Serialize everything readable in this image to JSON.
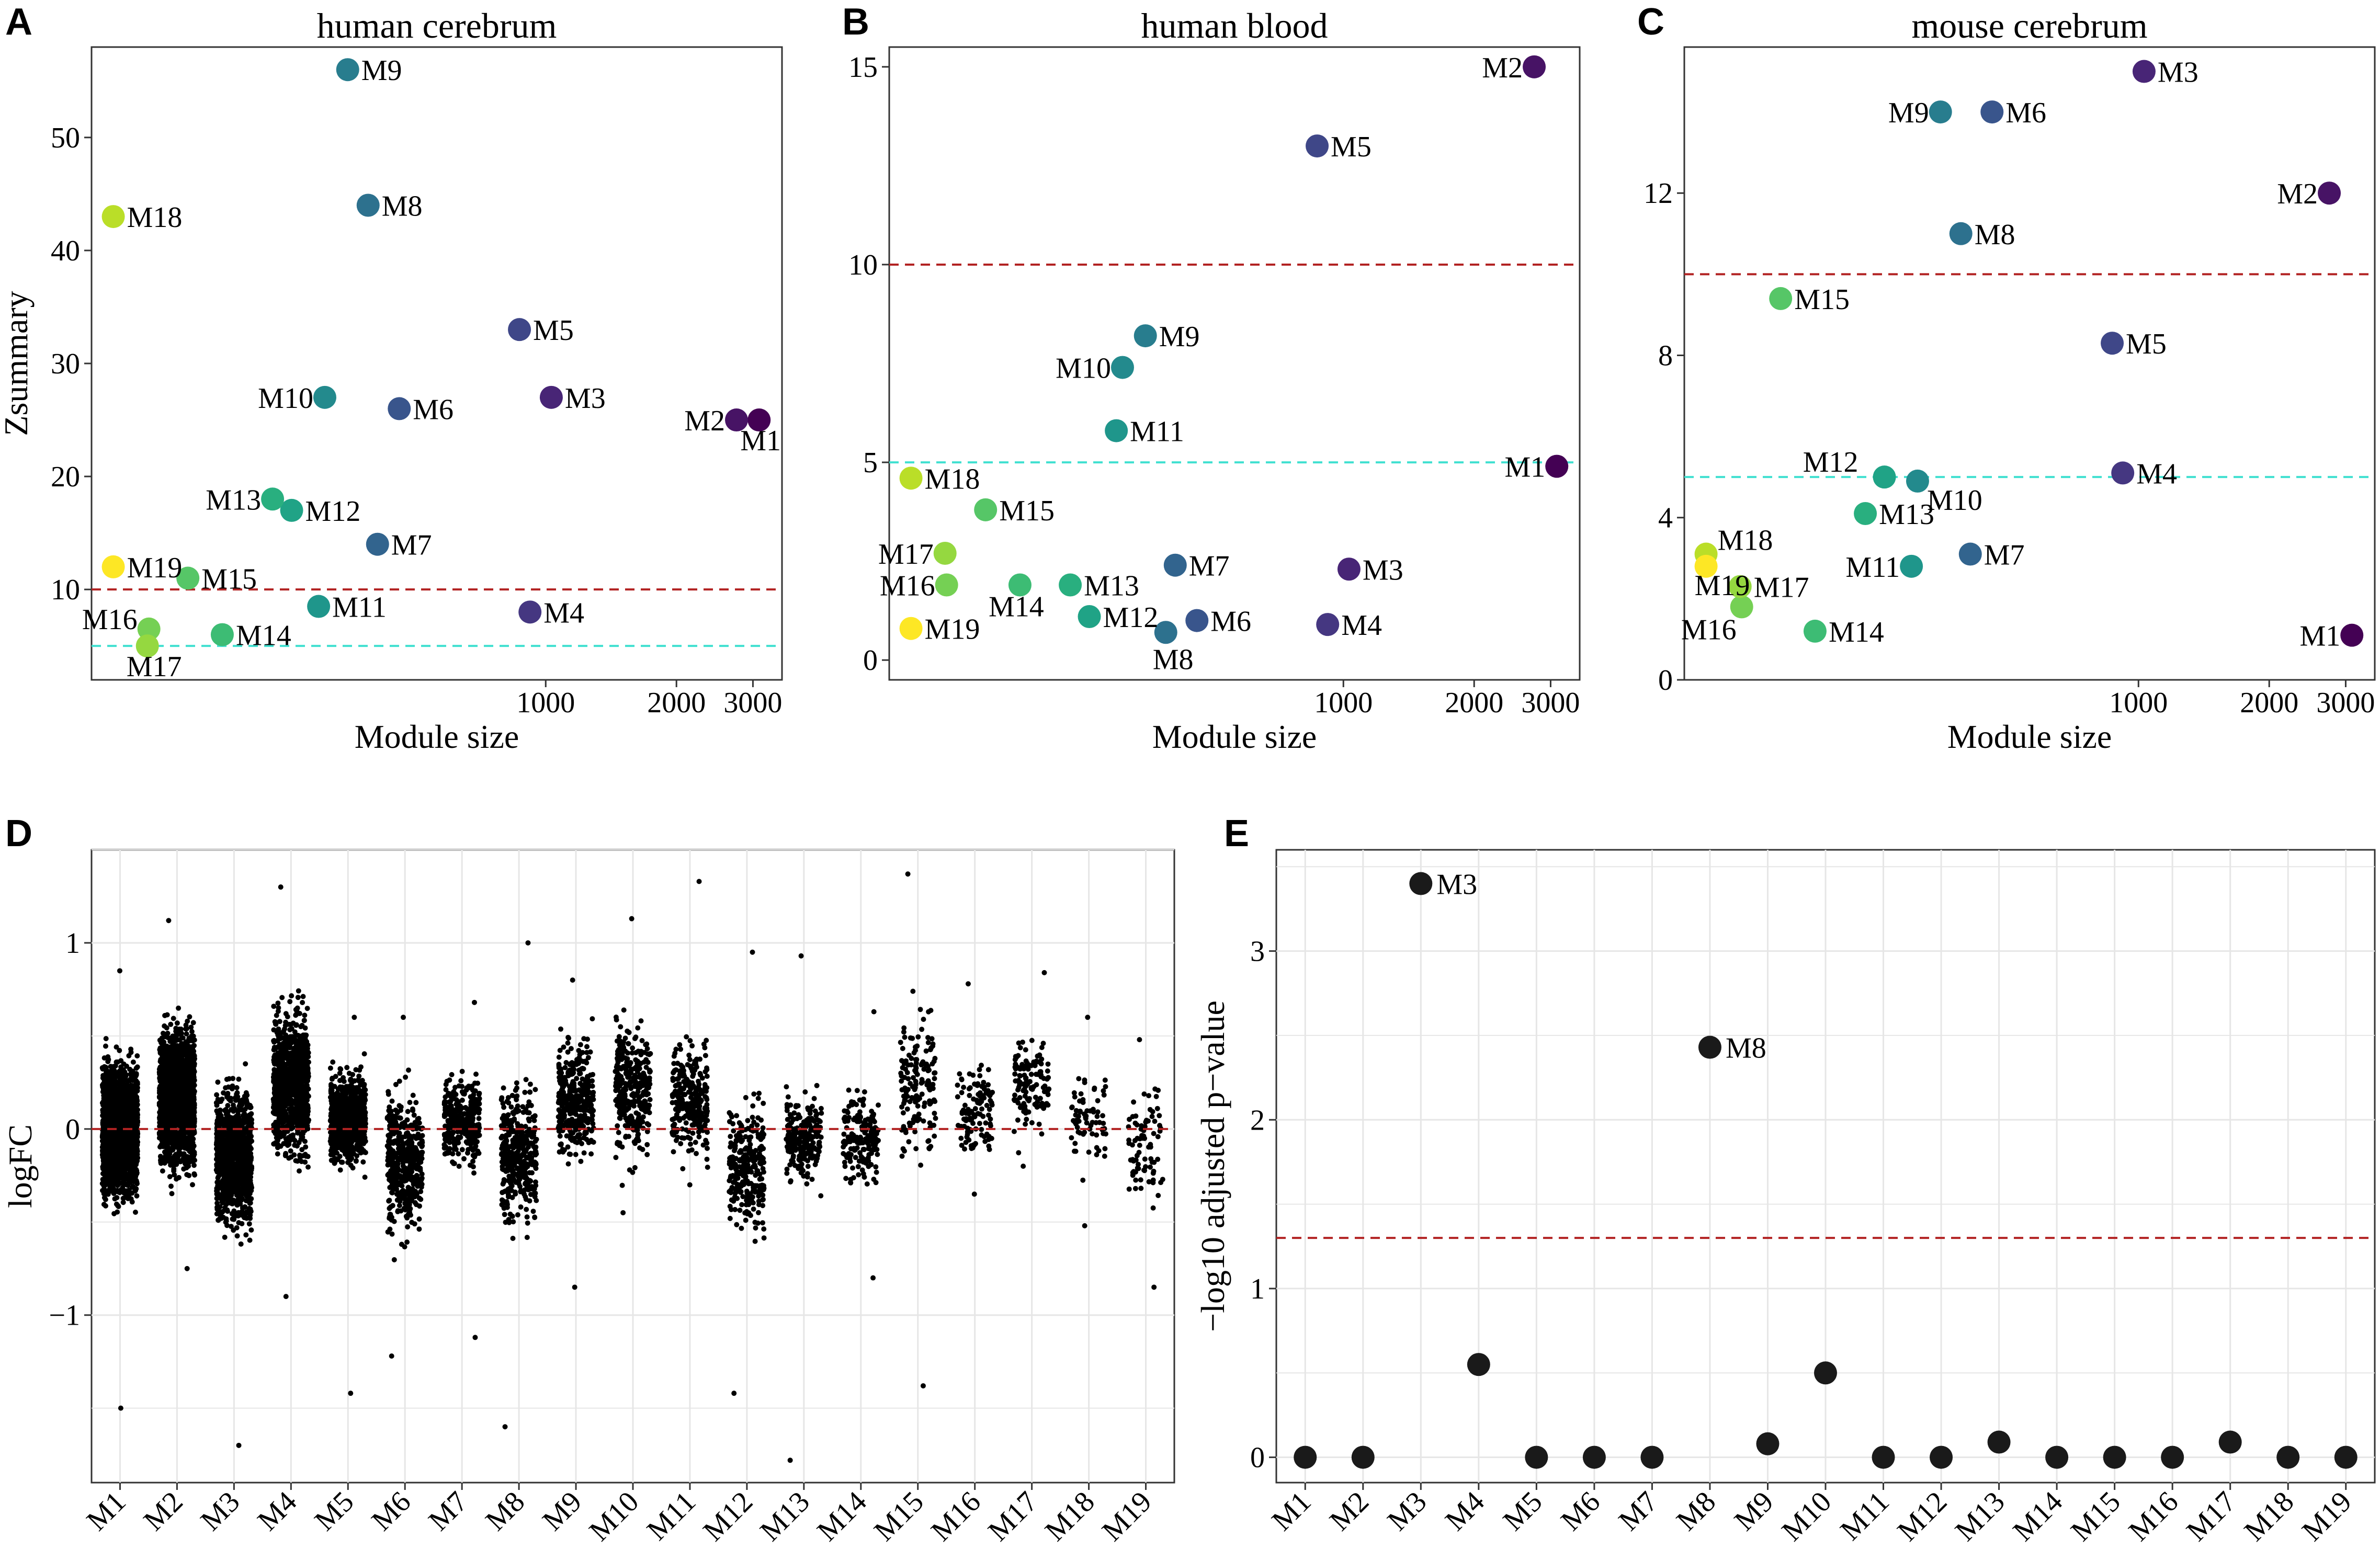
{
  "chart_data": [
    {
      "panel": "A",
      "type": "scatter",
      "title": "human cerebrum",
      "xlabel": "Module size",
      "ylabel": "Zsummary",
      "xscale": "log",
      "xlim": [
        90,
        3500
      ],
      "ylim": [
        2,
        58
      ],
      "xticks": [
        1000,
        2000,
        3000
      ],
      "yticks": [
        10,
        20,
        30,
        40,
        50
      ],
      "reference_lines": [
        {
          "y": 10,
          "color": "#b22222",
          "style": "dashed"
        },
        {
          "y": 5,
          "color": "#40e0d0",
          "style": "dashed"
        }
      ],
      "points": [
        {
          "label": "M1",
          "x": 3100,
          "y": 25,
          "color": "#440154"
        },
        {
          "label": "M2",
          "x": 2750,
          "y": 25,
          "color": "#471365"
        },
        {
          "label": "M3",
          "x": 1030,
          "y": 27,
          "color": "#482576"
        },
        {
          "label": "M4",
          "x": 920,
          "y": 8,
          "color": "#453781"
        },
        {
          "label": "M5",
          "x": 870,
          "y": 33,
          "color": "#3f4788"
        },
        {
          "label": "M6",
          "x": 460,
          "y": 26,
          "color": "#39558c"
        },
        {
          "label": "M7",
          "x": 410,
          "y": 14,
          "color": "#32648e"
        },
        {
          "label": "M8",
          "x": 390,
          "y": 44,
          "color": "#2d718e"
        },
        {
          "label": "M9",
          "x": 350,
          "y": 56,
          "color": "#287d8e"
        },
        {
          "label": "M10",
          "x": 310,
          "y": 27,
          "color": "#238a8d"
        },
        {
          "label": "M11",
          "x": 300,
          "y": 8.5,
          "color": "#1f968b"
        },
        {
          "label": "M12",
          "x": 260,
          "y": 17,
          "color": "#20a386"
        },
        {
          "label": "M13",
          "x": 235,
          "y": 18,
          "color": "#29af7f"
        },
        {
          "label": "M14",
          "x": 180,
          "y": 6,
          "color": "#3dbc74"
        },
        {
          "label": "M15",
          "x": 150,
          "y": 11,
          "color": "#56c667"
        },
        {
          "label": "M16",
          "x": 122,
          "y": 6.5,
          "color": "#75d054"
        },
        {
          "label": "M17",
          "x": 121,
          "y": 5,
          "color": "#95d840"
        },
        {
          "label": "M18",
          "x": 101,
          "y": 43,
          "color": "#bade28"
        },
        {
          "label": "M19",
          "x": 101,
          "y": 12,
          "color": "#fde725"
        }
      ]
    },
    {
      "panel": "B",
      "type": "scatter",
      "title": "human blood",
      "xlabel": "Module size",
      "ylabel": "",
      "xscale": "log",
      "xlim": [
        90,
        3500
      ],
      "ylim": [
        -0.5,
        15.5
      ],
      "xticks": [
        1000,
        2000,
        3000
      ],
      "yticks": [
        0,
        5,
        10,
        15
      ],
      "reference_lines": [
        {
          "y": 10,
          "color": "#b22222",
          "style": "dashed"
        },
        {
          "y": 5,
          "color": "#40e0d0",
          "style": "dashed"
        }
      ],
      "points": [
        {
          "label": "M1",
          "x": 3100,
          "y": 4.9,
          "color": "#440154"
        },
        {
          "label": "M2",
          "x": 2750,
          "y": 15,
          "color": "#471365"
        },
        {
          "label": "M3",
          "x": 1030,
          "y": 2.3,
          "color": "#482576"
        },
        {
          "label": "M4",
          "x": 920,
          "y": 0.9,
          "color": "#453781"
        },
        {
          "label": "M5",
          "x": 870,
          "y": 13,
          "color": "#3f4788"
        },
        {
          "label": "M6",
          "x": 460,
          "y": 1.0,
          "color": "#39558c"
        },
        {
          "label": "M7",
          "x": 410,
          "y": 2.4,
          "color": "#32648e"
        },
        {
          "label": "M8",
          "x": 390,
          "y": 0.7,
          "color": "#2d718e"
        },
        {
          "label": "M9",
          "x": 350,
          "y": 8.2,
          "color": "#287d8e"
        },
        {
          "label": "M10",
          "x": 310,
          "y": 7.4,
          "color": "#238a8d"
        },
        {
          "label": "M11",
          "x": 300,
          "y": 5.8,
          "color": "#1f968b"
        },
        {
          "label": "M12",
          "x": 260,
          "y": 1.1,
          "color": "#20a386"
        },
        {
          "label": "M13",
          "x": 235,
          "y": 1.9,
          "color": "#29af7f"
        },
        {
          "label": "M14",
          "x": 180,
          "y": 1.9,
          "color": "#3dbc74"
        },
        {
          "label": "M15",
          "x": 150,
          "y": 3.8,
          "color": "#56c667"
        },
        {
          "label": "M16",
          "x": 122,
          "y": 1.9,
          "color": "#75d054"
        },
        {
          "label": "M17",
          "x": 121,
          "y": 2.7,
          "color": "#95d840"
        },
        {
          "label": "M18",
          "x": 101,
          "y": 4.6,
          "color": "#bade28"
        },
        {
          "label": "M19",
          "x": 101,
          "y": 0.8,
          "color": "#fde725"
        }
      ]
    },
    {
      "panel": "C",
      "type": "scatter",
      "title": "mouse cerebrum",
      "xlabel": "Module size",
      "ylabel": "",
      "xscale": "log",
      "xlim": [
        90,
        3500
      ],
      "ylim": [
        0,
        15.6
      ],
      "xticks": [
        1000,
        2000,
        3000
      ],
      "yticks": [
        0,
        4,
        8,
        12
      ],
      "reference_lines": [
        {
          "y": 10,
          "color": "#b22222",
          "style": "dashed"
        },
        {
          "y": 5,
          "color": "#40e0d0",
          "style": "dashed"
        }
      ],
      "points": [
        {
          "label": "M1",
          "x": 3100,
          "y": 1.1,
          "color": "#440154"
        },
        {
          "label": "M2",
          "x": 2750,
          "y": 12,
          "color": "#471365"
        },
        {
          "label": "M3",
          "x": 1030,
          "y": 15,
          "color": "#482576"
        },
        {
          "label": "M4",
          "x": 920,
          "y": 5.1,
          "color": "#453781"
        },
        {
          "label": "M5",
          "x": 870,
          "y": 8.3,
          "color": "#3f4788"
        },
        {
          "label": "M6",
          "x": 460,
          "y": 14,
          "color": "#39558c"
        },
        {
          "label": "M7",
          "x": 410,
          "y": 3.1,
          "color": "#32648e"
        },
        {
          "label": "M8",
          "x": 390,
          "y": 11,
          "color": "#2d718e"
        },
        {
          "label": "M9",
          "x": 350,
          "y": 14,
          "color": "#287d8e"
        },
        {
          "label": "M10",
          "x": 310,
          "y": 4.9,
          "color": "#238a8d"
        },
        {
          "label": "M11",
          "x": 300,
          "y": 2.8,
          "color": "#1f968b"
        },
        {
          "label": "M12",
          "x": 260,
          "y": 5.0,
          "color": "#20a386"
        },
        {
          "label": "M13",
          "x": 235,
          "y": 4.1,
          "color": "#29af7f"
        },
        {
          "label": "M14",
          "x": 180,
          "y": 1.2,
          "color": "#3dbc74"
        },
        {
          "label": "M15",
          "x": 150,
          "y": 9.4,
          "color": "#56c667"
        },
        {
          "label": "M16",
          "x": 122,
          "y": 1.8,
          "color": "#75d054"
        },
        {
          "label": "M17",
          "x": 121,
          "y": 2.3,
          "color": "#95d840"
        },
        {
          "label": "M18",
          "x": 101,
          "y": 3.1,
          "color": "#bade28"
        },
        {
          "label": "M19",
          "x": 101,
          "y": 2.8,
          "color": "#fde725"
        }
      ]
    },
    {
      "panel": "D",
      "type": "scatter",
      "subtype": "jitter-strip",
      "title": "",
      "xlabel": "",
      "ylabel": "logFC",
      "ylim": [
        -1.9,
        1.5
      ],
      "yticks": [
        -1,
        0,
        1
      ],
      "reference_lines": [
        {
          "y": 0,
          "color": "#b22222",
          "style": "dashed"
        }
      ],
      "categories": [
        "M1",
        "M2",
        "M3",
        "M4",
        "M5",
        "M6",
        "M7",
        "M8",
        "M9",
        "M10",
        "M11",
        "M12",
        "M13",
        "M14",
        "M15",
        "M16",
        "M17",
        "M18",
        "M19"
      ],
      "groups": [
        {
          "module": "M1",
          "n": 2200,
          "mean": 0.0,
          "sd": 0.28,
          "min": -1.5,
          "max": 0.85
        },
        {
          "module": "M2",
          "n": 1800,
          "mean": 0.18,
          "sd": 0.3,
          "min": -0.75,
          "max": 1.12
        },
        {
          "module": "M3",
          "n": 1100,
          "mean": -0.15,
          "sd": 0.3,
          "min": -1.7,
          "max": 0.35
        },
        {
          "module": "M4",
          "n": 900,
          "mean": 0.25,
          "sd": 0.33,
          "min": -0.9,
          "max": 1.3
        },
        {
          "module": "M5",
          "n": 700,
          "mean": 0.05,
          "sd": 0.2,
          "min": -1.42,
          "max": 0.6
        },
        {
          "module": "M6",
          "n": 450,
          "mean": -0.18,
          "sd": 0.3,
          "min": -1.22,
          "max": 0.6
        },
        {
          "module": "M7",
          "n": 300,
          "mean": 0.05,
          "sd": 0.2,
          "min": -1.12,
          "max": 0.68
        },
        {
          "module": "M8",
          "n": 380,
          "mean": -0.15,
          "sd": 0.3,
          "min": -1.6,
          "max": 1.0
        },
        {
          "module": "M9",
          "n": 350,
          "mean": 0.15,
          "sd": 0.25,
          "min": -0.85,
          "max": 0.8
        },
        {
          "module": "M10",
          "n": 320,
          "mean": 0.22,
          "sd": 0.3,
          "min": -0.45,
          "max": 1.13
        },
        {
          "module": "M11",
          "n": 280,
          "mean": 0.15,
          "sd": 0.25,
          "min": -0.3,
          "max": 1.33
        },
        {
          "module": "M12",
          "n": 260,
          "mean": -0.2,
          "sd": 0.28,
          "min": -1.42,
          "max": 0.95
        },
        {
          "module": "M13",
          "n": 220,
          "mean": -0.05,
          "sd": 0.2,
          "min": -1.78,
          "max": 0.93
        },
        {
          "module": "M14",
          "n": 180,
          "mean": -0.05,
          "sd": 0.2,
          "min": -0.8,
          "max": 0.63
        },
        {
          "module": "M15",
          "n": 150,
          "mean": 0.25,
          "sd": 0.35,
          "min": -1.38,
          "max": 1.37
        },
        {
          "module": "M16",
          "n": 110,
          "mean": 0.1,
          "sd": 0.2,
          "min": -0.35,
          "max": 0.78
        },
        {
          "module": "M17",
          "n": 120,
          "mean": 0.25,
          "sd": 0.22,
          "min": -0.2,
          "max": 0.84
        },
        {
          "module": "M18",
          "n": 70,
          "mean": 0.05,
          "sd": 0.2,
          "min": -0.52,
          "max": 0.6
        },
        {
          "module": "M19",
          "n": 80,
          "mean": -0.05,
          "sd": 0.25,
          "min": -0.85,
          "max": 0.48
        }
      ]
    },
    {
      "panel": "E",
      "type": "scatter",
      "title": "",
      "xlabel": "",
      "ylabel": "−log10 adjusted p−value",
      "ylim": [
        -0.15,
        3.6
      ],
      "yticks": [
        0,
        1,
        2,
        3
      ],
      "reference_lines": [
        {
          "y": 1.3,
          "color": "#b22222",
          "style": "dashed"
        }
      ],
      "categories": [
        "M1",
        "M2",
        "M3",
        "M4",
        "M5",
        "M6",
        "M7",
        "M8",
        "M9",
        "M10",
        "M11",
        "M12",
        "M13",
        "M14",
        "M15",
        "M16",
        "M17",
        "M18",
        "M19"
      ],
      "values": [
        0,
        0,
        3.4,
        0.55,
        0,
        0,
        0,
        2.43,
        0.08,
        0.5,
        0,
        0,
        0.09,
        0,
        0,
        0,
        0.09,
        0,
        0
      ],
      "point_labels": {
        "M3": "M3",
        "M8": "M8"
      },
      "point_color": "#1a1a1a"
    }
  ],
  "panels": {
    "A": {
      "letter": "A"
    },
    "B": {
      "letter": "B"
    },
    "C": {
      "letter": "C"
    },
    "D": {
      "letter": "D"
    },
    "E": {
      "letter": "E"
    }
  }
}
